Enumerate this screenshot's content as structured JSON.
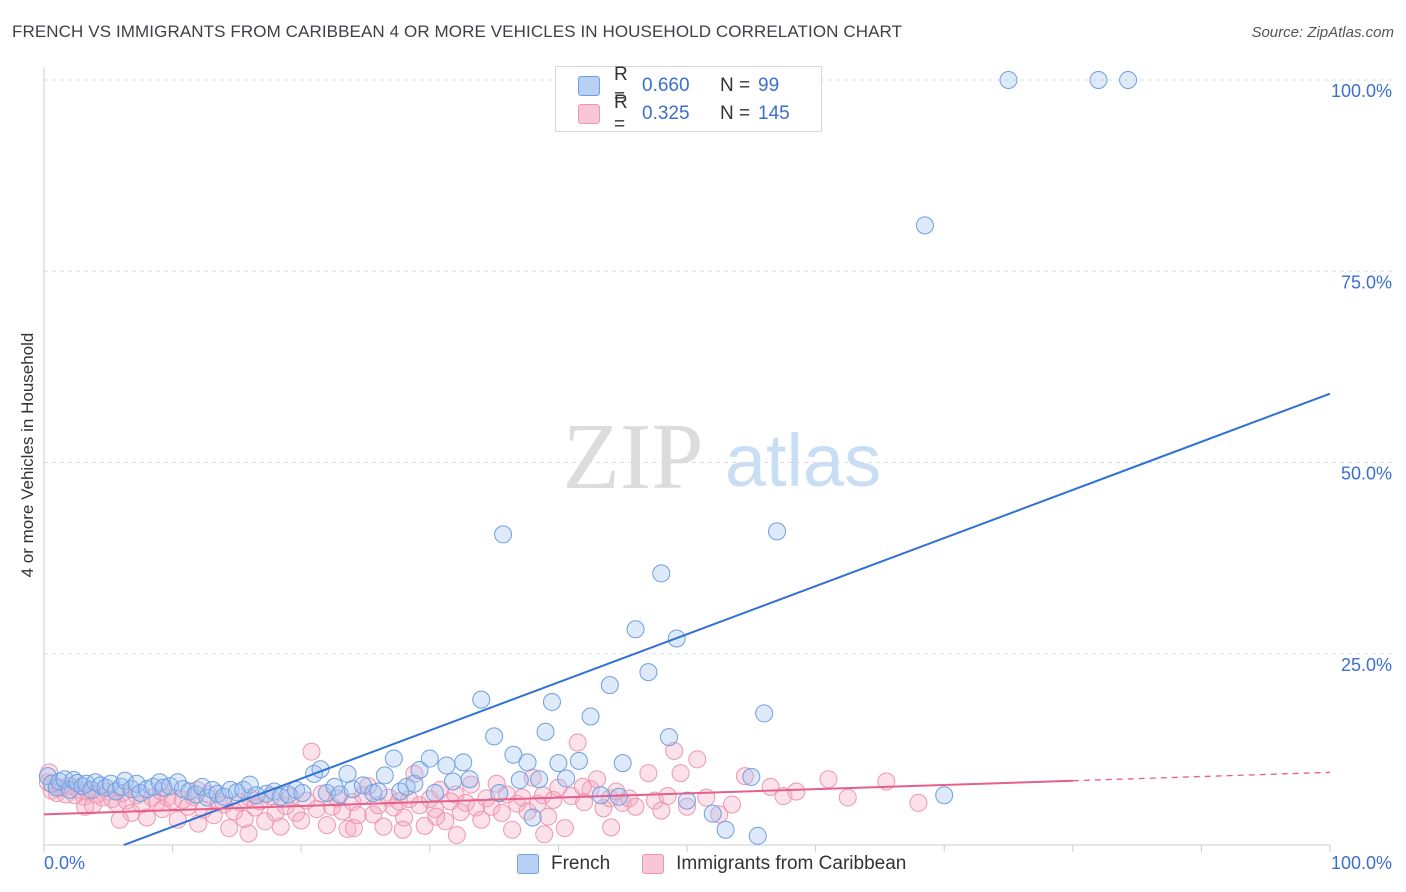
{
  "title": "FRENCH VS IMMIGRANTS FROM CARIBBEAN 4 OR MORE VEHICLES IN HOUSEHOLD CORRELATION CHART",
  "source": "Source: ZipAtlas.com",
  "watermark": {
    "zip": "ZIP",
    "atlas": "atlas"
  },
  "colors": {
    "french": "#6f9fe0",
    "french_line": "#2f72d3",
    "caribbean": "#ef96b0",
    "caribbean_line": "#e4608b",
    "tick": "#3b6fcf"
  },
  "legend_top": {
    "french": {
      "r_label": "R =",
      "r_value": "0.660",
      "n_label": "N =",
      "n_value": "99"
    },
    "caribbean": {
      "r_label": "R =",
      "r_value": "0.325",
      "n_label": "N =",
      "n_value": "145"
    }
  },
  "legend_bottom": {
    "french": "French",
    "caribbean": "Immigrants from Caribbean"
  },
  "chart_data": {
    "type": "scatter",
    "title": "FRENCH VS IMMIGRANTS FROM CARIBBEAN 4 OR MORE VEHICLES IN HOUSEHOLD CORRELATION CHART",
    "xlabel": "",
    "ylabel": "4 or more Vehicles in Household",
    "xlim": [
      0,
      100
    ],
    "ylim": [
      0,
      100
    ],
    "x_tick_labels": [
      "0.0%",
      "100.0%"
    ],
    "y_ticks": [
      25,
      50,
      75,
      100
    ],
    "y_tick_labels": [
      "25.0%",
      "50.0%",
      "75.0%",
      "100.0%"
    ],
    "grid": true,
    "series": [
      {
        "name": "French",
        "trend": {
          "x0": 0,
          "y0": -3.9,
          "x1": 100,
          "y1": 59.0,
          "solid_to": 100
        },
        "points": [
          [
            0.3,
            9.0
          ],
          [
            0.6,
            8.0
          ],
          [
            1.0,
            7.5
          ],
          [
            1.2,
            8.3
          ],
          [
            1.6,
            8.6
          ],
          [
            2.0,
            7.2
          ],
          [
            2.3,
            8.5
          ],
          [
            2.6,
            8.1
          ],
          [
            3.0,
            7.7
          ],
          [
            3.3,
            8.0
          ],
          [
            3.7,
            7.2
          ],
          [
            4.0,
            8.2
          ],
          [
            4.4,
            7.8
          ],
          [
            4.8,
            7.5
          ],
          [
            5.2,
            8.0
          ],
          [
            5.6,
            7.0
          ],
          [
            6.0,
            7.6
          ],
          [
            6.3,
            8.4
          ],
          [
            6.8,
            7.3
          ],
          [
            7.2,
            8.0
          ],
          [
            7.5,
            6.8
          ],
          [
            8.0,
            7.3
          ],
          [
            8.5,
            7.6
          ],
          [
            9.0,
            8.2
          ],
          [
            9.3,
            7.5
          ],
          [
            9.8,
            7.7
          ],
          [
            10.4,
            8.2
          ],
          [
            10.8,
            7.3
          ],
          [
            11.3,
            7.0
          ],
          [
            11.8,
            6.6
          ],
          [
            12.3,
            7.6
          ],
          [
            12.7,
            6.2
          ],
          [
            13.1,
            7.2
          ],
          [
            13.5,
            6.7
          ],
          [
            14.0,
            6.3
          ],
          [
            14.5,
            7.2
          ],
          [
            15.0,
            6.9
          ],
          [
            15.5,
            7.2
          ],
          [
            16.0,
            7.9
          ],
          [
            16.5,
            6.5
          ],
          [
            17.3,
            6.7
          ],
          [
            17.9,
            7.0
          ],
          [
            18.4,
            6.3
          ],
          [
            19.0,
            6.6
          ],
          [
            19.6,
            7.2
          ],
          [
            20.1,
            6.8
          ],
          [
            21.0,
            9.3
          ],
          [
            21.5,
            9.9
          ],
          [
            22.0,
            6.8
          ],
          [
            22.6,
            7.6
          ],
          [
            23.0,
            6.6
          ],
          [
            23.6,
            9.3
          ],
          [
            24.0,
            7.3
          ],
          [
            24.8,
            7.8
          ],
          [
            25.6,
            6.8
          ],
          [
            26.0,
            7.0
          ],
          [
            26.5,
            9.1
          ],
          [
            27.2,
            11.3
          ],
          [
            27.7,
            7.0
          ],
          [
            28.2,
            7.6
          ],
          [
            28.8,
            8.0
          ],
          [
            29.2,
            9.8
          ],
          [
            30.0,
            11.3
          ],
          [
            30.4,
            6.8
          ],
          [
            31.3,
            10.4
          ],
          [
            31.8,
            8.3
          ],
          [
            32.6,
            10.8
          ],
          [
            33.1,
            8.6
          ],
          [
            34.0,
            19.0
          ],
          [
            35.0,
            14.2
          ],
          [
            35.4,
            6.8
          ],
          [
            35.7,
            40.6
          ],
          [
            36.5,
            11.8
          ],
          [
            37.0,
            8.5
          ],
          [
            37.6,
            10.8
          ],
          [
            38.5,
            8.6
          ],
          [
            38.0,
            3.6
          ],
          [
            39.0,
            14.8
          ],
          [
            39.5,
            18.7
          ],
          [
            40.0,
            10.7
          ],
          [
            40.6,
            8.7
          ],
          [
            41.6,
            11.0
          ],
          [
            42.5,
            16.8
          ],
          [
            43.3,
            6.5
          ],
          [
            44.0,
            20.9
          ],
          [
            44.7,
            6.3
          ],
          [
            45.0,
            10.7
          ],
          [
            46.0,
            28.2
          ],
          [
            47.0,
            22.6
          ],
          [
            48.0,
            35.5
          ],
          [
            48.6,
            14.1
          ],
          [
            49.2,
            27.0
          ],
          [
            50.0,
            5.8
          ],
          [
            52.0,
            4.1
          ],
          [
            53.0,
            2.0
          ],
          [
            55.0,
            8.9
          ],
          [
            55.5,
            1.2
          ],
          [
            56.0,
            17.2
          ],
          [
            57.0,
            41.0
          ],
          [
            68.5,
            81.0
          ],
          [
            75.0,
            100.0
          ],
          [
            82.0,
            100.0
          ],
          [
            84.3,
            100.0
          ],
          [
            70.0,
            6.5
          ]
        ]
      },
      {
        "name": "Immigrants from Caribbean",
        "trend": {
          "x0": 0,
          "y0": 4.0,
          "x1": 100,
          "y1": 9.5,
          "solid_to": 80
        },
        "points": [
          [
            0.3,
            8.2
          ],
          [
            0.6,
            7.1
          ],
          [
            1.0,
            6.8
          ],
          [
            1.3,
            7.5
          ],
          [
            1.7,
            6.6
          ],
          [
            2.0,
            7.7
          ],
          [
            2.4,
            6.5
          ],
          [
            2.7,
            7.2
          ],
          [
            3.1,
            6.3
          ],
          [
            3.4,
            7.0
          ],
          [
            3.8,
            5.2
          ],
          [
            4.1,
            6.6
          ],
          [
            4.5,
            6.2
          ],
          [
            4.9,
            7.0
          ],
          [
            5.3,
            6.0
          ],
          [
            5.7,
            5.4
          ],
          [
            6.1,
            6.8
          ],
          [
            6.4,
            5.8
          ],
          [
            6.8,
            4.2
          ],
          [
            7.2,
            6.5
          ],
          [
            7.6,
            5.3
          ],
          [
            8.0,
            3.6
          ],
          [
            8.4,
            6.2
          ],
          [
            8.8,
            5.6
          ],
          [
            9.2,
            4.7
          ],
          [
            9.6,
            6.2
          ],
          [
            10.0,
            5.8
          ],
          [
            10.4,
            3.3
          ],
          [
            10.8,
            5.9
          ],
          [
            11.2,
            5.0
          ],
          [
            11.6,
            6.3
          ],
          [
            12.0,
            2.8
          ],
          [
            12.4,
            4.6
          ],
          [
            12.8,
            6.6
          ],
          [
            13.2,
            3.9
          ],
          [
            13.6,
            5.7
          ],
          [
            14.0,
            5.3
          ],
          [
            14.4,
            2.2
          ],
          [
            14.8,
            4.4
          ],
          [
            15.2,
            5.6
          ],
          [
            15.6,
            3.4
          ],
          [
            16.0,
            6.2
          ],
          [
            16.4,
            4.9
          ],
          [
            16.8,
            5.7
          ],
          [
            17.2,
            3.1
          ],
          [
            17.6,
            6.4
          ],
          [
            18.0,
            4.2
          ],
          [
            18.4,
            2.4
          ],
          [
            18.8,
            5.1
          ],
          [
            19.2,
            6.3
          ],
          [
            19.6,
            4.2
          ],
          [
            20.0,
            3.2
          ],
          [
            20.4,
            5.8
          ],
          [
            20.8,
            12.2
          ],
          [
            21.2,
            4.7
          ],
          [
            21.6,
            6.7
          ],
          [
            22.0,
            2.6
          ],
          [
            22.4,
            5.0
          ],
          [
            22.8,
            6.1
          ],
          [
            23.2,
            4.4
          ],
          [
            23.6,
            2.1
          ],
          [
            24.0,
            5.6
          ],
          [
            24.4,
            3.9
          ],
          [
            24.8,
            6.5
          ],
          [
            25.2,
            7.7
          ],
          [
            25.6,
            4.0
          ],
          [
            26.0,
            5.2
          ],
          [
            26.4,
            2.4
          ],
          [
            26.8,
            6.2
          ],
          [
            27.2,
            4.9
          ],
          [
            27.6,
            5.7
          ],
          [
            28.0,
            3.6
          ],
          [
            28.4,
            6.0
          ],
          [
            28.8,
            9.3
          ],
          [
            29.2,
            5.2
          ],
          [
            29.6,
            2.5
          ],
          [
            30.0,
            6.0
          ],
          [
            30.4,
            4.7
          ],
          [
            30.8,
            7.2
          ],
          [
            31.2,
            3.1
          ],
          [
            31.6,
            5.7
          ],
          [
            32.0,
            6.6
          ],
          [
            32.4,
            4.3
          ],
          [
            32.8,
            5.5
          ],
          [
            33.2,
            7.9
          ],
          [
            33.6,
            4.9
          ],
          [
            34.0,
            3.3
          ],
          [
            34.4,
            6.1
          ],
          [
            34.8,
            5.0
          ],
          [
            35.2,
            8.0
          ],
          [
            35.6,
            4.2
          ],
          [
            36.0,
            6.6
          ],
          [
            36.4,
            2.0
          ],
          [
            36.8,
            5.4
          ],
          [
            37.2,
            6.2
          ],
          [
            37.6,
            4.4
          ],
          [
            38.0,
            8.8
          ],
          [
            38.4,
            5.4
          ],
          [
            38.8,
            6.5
          ],
          [
            39.2,
            3.7
          ],
          [
            39.6,
            5.9
          ],
          [
            40.0,
            7.5
          ],
          [
            40.5,
            2.2
          ],
          [
            41.0,
            6.4
          ],
          [
            41.5,
            13.4
          ],
          [
            42.0,
            5.6
          ],
          [
            42.5,
            7.3
          ],
          [
            43.0,
            8.6
          ],
          [
            43.5,
            4.8
          ],
          [
            44.0,
            6.1
          ],
          [
            44.5,
            7.0
          ],
          [
            45.0,
            5.5
          ],
          [
            45.5,
            6.1
          ],
          [
            46.0,
            5.0
          ],
          [
            47.0,
            9.4
          ],
          [
            47.5,
            5.8
          ],
          [
            48.0,
            4.5
          ],
          [
            48.5,
            6.4
          ],
          [
            49.0,
            12.3
          ],
          [
            49.5,
            9.4
          ],
          [
            50.0,
            5.0
          ],
          [
            50.8,
            11.2
          ],
          [
            51.5,
            6.2
          ],
          [
            52.5,
            4.0
          ],
          [
            53.5,
            5.3
          ],
          [
            54.5,
            9.0
          ],
          [
            56.5,
            7.6
          ],
          [
            57.5,
            6.4
          ],
          [
            58.5,
            7.0
          ],
          [
            61.0,
            8.6
          ],
          [
            62.5,
            6.2
          ],
          [
            65.5,
            8.3
          ],
          [
            68.0,
            5.5
          ],
          [
            0.4,
            9.5
          ],
          [
            3.2,
            5.0
          ],
          [
            11.9,
            7.2
          ],
          [
            24.1,
            2.2
          ],
          [
            30.5,
            3.7
          ],
          [
            32.1,
            1.3
          ],
          [
            38.9,
            1.4
          ],
          [
            44.1,
            2.3
          ],
          [
            5.9,
            3.3
          ],
          [
            15.9,
            1.5
          ],
          [
            27.9,
            2.0
          ],
          [
            41.9,
            7.6
          ],
          [
            9.1,
            7.0
          ]
        ]
      }
    ]
  }
}
